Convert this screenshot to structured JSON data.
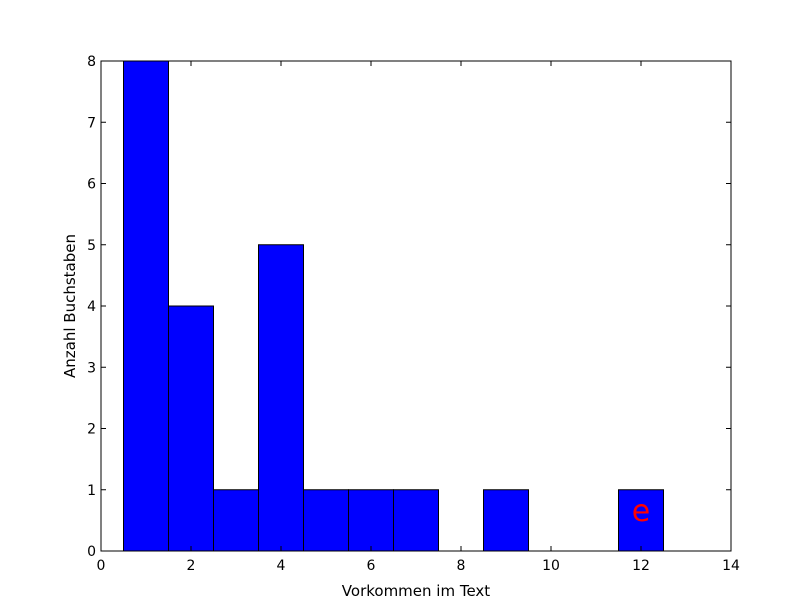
{
  "chart_data": {
    "type": "bar",
    "title": "",
    "xlabel": "Vorkommen im Text",
    "ylabel": "Anzahl Buchstaben",
    "xlim": [
      0,
      14
    ],
    "ylim": [
      0,
      8
    ],
    "x_ticks": [
      "0",
      "2",
      "4",
      "6",
      "8",
      "10",
      "12",
      "14"
    ],
    "y_ticks": [
      "0",
      "1",
      "2",
      "3",
      "4",
      "5",
      "6",
      "7",
      "8"
    ],
    "bin_width": 1,
    "bars": [
      {
        "x": 1,
        "value": 8
      },
      {
        "x": 2,
        "value": 4
      },
      {
        "x": 3,
        "value": 1
      },
      {
        "x": 4,
        "value": 5
      },
      {
        "x": 5,
        "value": 1
      },
      {
        "x": 6,
        "value": 1
      },
      {
        "x": 7,
        "value": 1
      },
      {
        "x": 9,
        "value": 1
      },
      {
        "x": 12,
        "value": 1
      }
    ],
    "bar_color": "#0000ff",
    "grid": false,
    "annotations": [
      {
        "text": "e",
        "x": 12,
        "y": 0.65,
        "color": "#ff0000"
      }
    ]
  }
}
